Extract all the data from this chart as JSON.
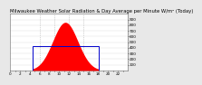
{
  "title": "Milwaukee Weather Solar Radiation & Day Average per Minute W/m² (Today)",
  "bg_color": "#e8e8e8",
  "plot_bg": "#ffffff",
  "bar_color": "#ff0000",
  "line_color": "#0000cc",
  "peak_value": 850,
  "avg_value": 430,
  "num_points": 1440,
  "sunrise_idx": 270,
  "sunset_idx": 1080,
  "ylim": [
    0,
    1000
  ],
  "ytick_vals": [
    100,
    200,
    300,
    400,
    500,
    600,
    700,
    800,
    900
  ],
  "vlines": [
    360,
    540,
    720,
    900
  ],
  "grid_color": "#aaaaaa",
  "title_fontsize": 3.8,
  "tick_fontsize": 3.0,
  "bell_sigma": 0.38
}
